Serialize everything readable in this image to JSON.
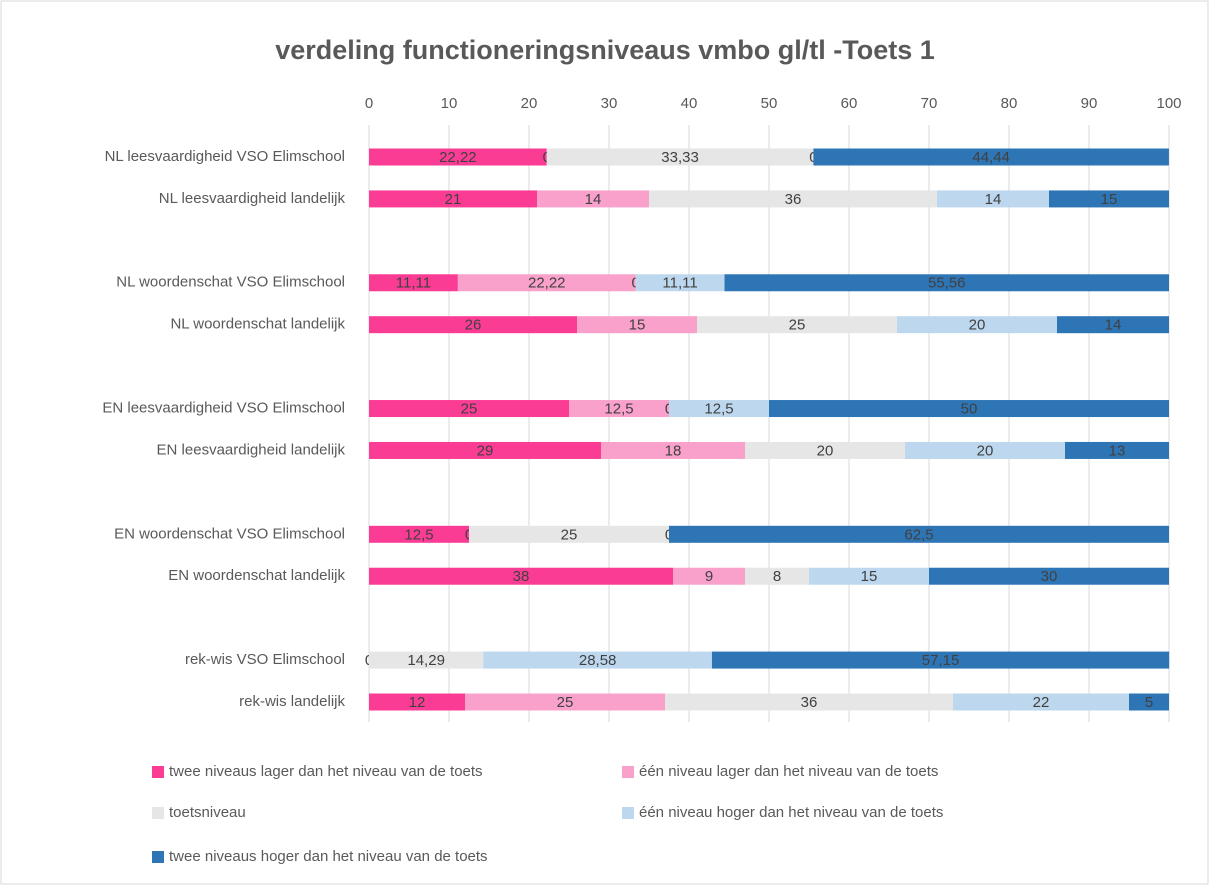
{
  "chart_data": {
    "type": "stacked-bar-horizontal",
    "title": "verdeling functioneringsniveaus vmbo gl/tl -Toets 1",
    "categories": [
      "NL leesvaardigheid VSO Elimschool",
      "NL leesvaardigheid landelijk",
      null,
      "NL woordenschat VSO Elimschool",
      "NL woordenschat landelijk",
      null,
      "EN leesvaardigheid VSO Elimschool",
      "EN leesvaardigheid landelijk",
      null,
      "EN woordenschat VSO Elimschool",
      "EN woordenschat landelijk",
      null,
      "rek-wis VSO Elimschool",
      "rek-wis landelijk"
    ],
    "series": [
      {
        "name": "twee niveaus lager dan het niveau van de toets",
        "color": "#fb3c95",
        "values": [
          22.22,
          21,
          null,
          11.11,
          26,
          null,
          25,
          29,
          null,
          12.5,
          38,
          null,
          0,
          12
        ],
        "value_labels": [
          "22,22",
          "21",
          null,
          "11,11",
          "26",
          null,
          "25",
          "29",
          null,
          "12,5",
          "38",
          null,
          "0",
          "12"
        ]
      },
      {
        "name": "één niveau lager dan het niveau van de toets",
        "color": "#f9a0cb",
        "values": [
          0,
          14,
          null,
          22.22,
          15,
          null,
          12.5,
          18,
          null,
          0,
          9,
          null,
          null,
          25
        ],
        "value_labels": [
          "0",
          "14",
          null,
          "22,22",
          "15",
          null,
          "12,5",
          "18",
          null,
          "0",
          "9",
          null,
          null,
          "25"
        ]
      },
      {
        "name": "toetsniveau",
        "color": "#e6e6e6",
        "values": [
          33.33,
          36,
          null,
          0,
          25,
          null,
          0,
          20,
          null,
          25,
          8,
          null,
          14.29,
          36
        ],
        "value_labels": [
          "33,33",
          "36",
          null,
          "0",
          "25",
          null,
          "0",
          "20",
          null,
          "25",
          "8",
          null,
          "14,29",
          "36"
        ]
      },
      {
        "name": "één niveau hoger dan het niveau van de toets",
        "color": "#bdd7ee",
        "values": [
          0,
          14,
          null,
          11.11,
          20,
          null,
          12.5,
          20,
          null,
          0,
          15,
          null,
          28.58,
          22
        ],
        "value_labels": [
          "0",
          "14",
          null,
          "11,11",
          "20",
          null,
          "12,5",
          "20",
          null,
          "0",
          "15",
          null,
          "28,58",
          "22"
        ]
      },
      {
        "name": "twee niveaus hoger dan het niveau van de toets",
        "color": "#2e75b6",
        "values": [
          44.44,
          15,
          null,
          55.56,
          14,
          null,
          50,
          13,
          null,
          62.5,
          30,
          null,
          57.15,
          5
        ],
        "value_labels": [
          "44,44",
          "15",
          null,
          "55,56",
          "14",
          null,
          "50",
          "13",
          null,
          "62,5",
          "30",
          null,
          "57,15",
          "5"
        ]
      }
    ],
    "xlim": [
      0,
      100
    ],
    "xticks": [
      0,
      10,
      20,
      30,
      40,
      50,
      60,
      70,
      80,
      90,
      100
    ],
    "grid": true,
    "legend": "bottom"
  }
}
